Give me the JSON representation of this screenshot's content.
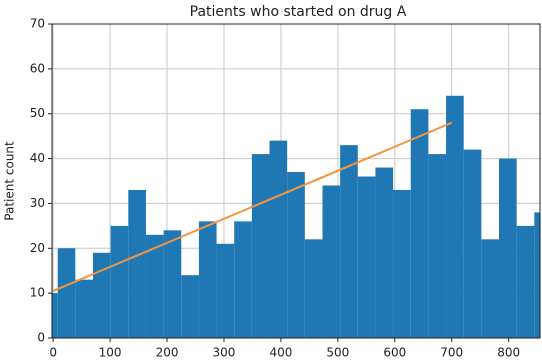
{
  "chart_data": {
    "type": "histogram",
    "title": "Patients who started on drug A",
    "ylabel": "Patient count",
    "bins": [
      -23,
      8,
      39,
      70,
      101,
      132,
      163,
      194,
      225,
      256,
      287,
      318,
      349,
      380,
      411,
      442,
      473,
      504,
      535,
      566,
      597,
      628,
      659,
      690,
      721,
      752,
      783,
      814,
      845,
      876
    ],
    "counts": [
      10,
      20,
      13,
      19,
      25,
      33,
      23,
      24,
      14,
      26,
      21,
      26,
      41,
      44,
      37,
      22,
      34,
      43,
      36,
      38,
      33,
      51,
      41,
      54,
      42,
      22,
      40,
      25,
      28
    ],
    "color": "#1f77b4",
    "line": {
      "x": [
        0,
        700
      ],
      "values": [
        10.5,
        48
      ],
      "color": "#f39540"
    },
    "xlim": [
      -2,
      855
    ],
    "ylim": [
      0,
      70
    ],
    "xticks": [
      0,
      100,
      200,
      300,
      400,
      500,
      600,
      700,
      800
    ],
    "yticks": [
      0,
      10,
      20,
      30,
      40,
      50,
      60,
      70
    ],
    "grid": true
  }
}
